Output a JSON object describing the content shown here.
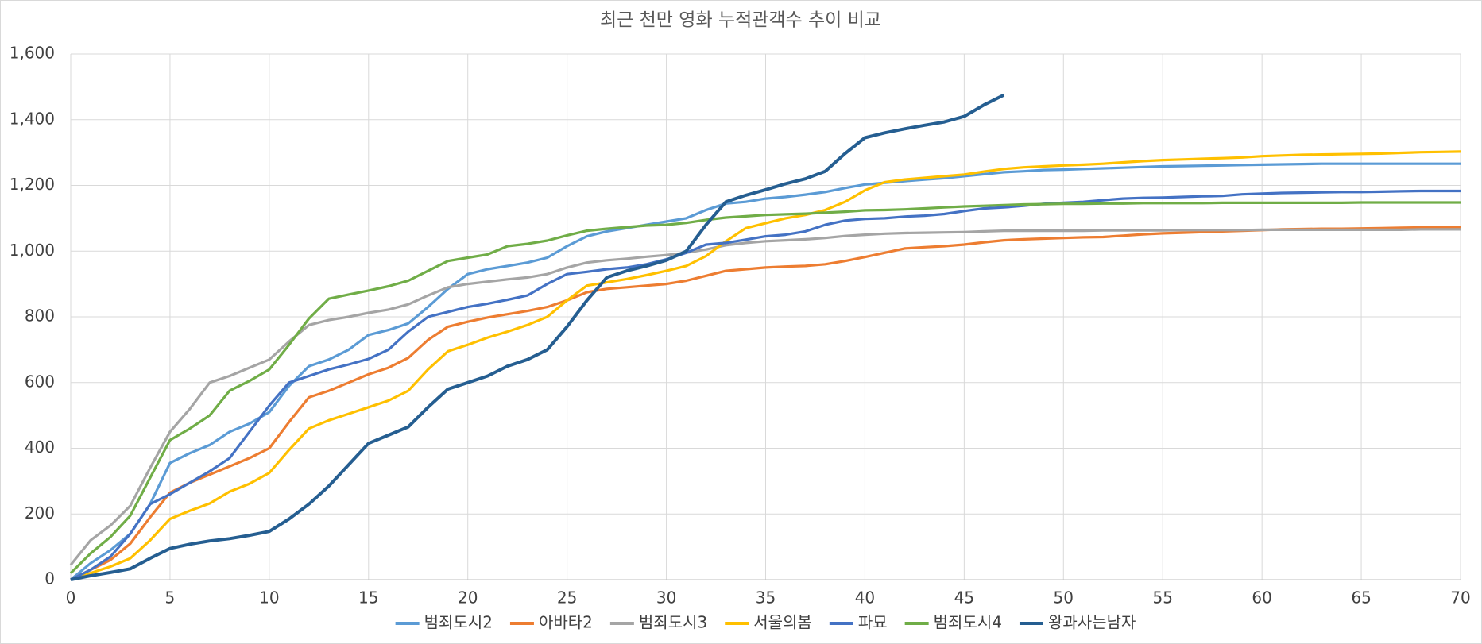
{
  "chart_data": {
    "type": "line",
    "title": "최근 천만 영화 누적관객수 추이 비교",
    "x": [
      0,
      1,
      2,
      3,
      4,
      5,
      6,
      7,
      8,
      9,
      10,
      11,
      12,
      13,
      14,
      15,
      16,
      17,
      18,
      19,
      20,
      21,
      22,
      23,
      24,
      25,
      26,
      27,
      28,
      29,
      30,
      31,
      32,
      33,
      34,
      35,
      36,
      37,
      38,
      39,
      40,
      41,
      42,
      43,
      44,
      45,
      46,
      47,
      48,
      49,
      50,
      51,
      52,
      53,
      54,
      55,
      56,
      57,
      58,
      59,
      60,
      61,
      62,
      63,
      64,
      65,
      66,
      67,
      68,
      69,
      70
    ],
    "series": [
      {
        "name": "범죄도시2",
        "color": "#5b9bd5",
        "values": [
          0,
          50,
          90,
          140,
          230,
          355,
          385,
          410,
          450,
          475,
          510,
          590,
          650,
          670,
          700,
          745,
          760,
          780,
          830,
          885,
          930,
          945,
          955,
          965,
          980,
          1015,
          1045,
          1060,
          1070,
          1080,
          1090,
          1100,
          1125,
          1145,
          1150,
          1160,
          1165,
          1172,
          1180,
          1192,
          1203,
          1208,
          1213,
          1218,
          1222,
          1228,
          1234,
          1240,
          1243,
          1247,
          1248,
          1250,
          1252,
          1254,
          1256,
          1258,
          1259,
          1260,
          1261,
          1262,
          1263,
          1264,
          1265,
          1266,
          1266,
          1266,
          1266,
          1266,
          1266,
          1266,
          1266
        ]
      },
      {
        "name": "아바타2",
        "color": "#ed7d31",
        "values": [
          0,
          30,
          60,
          110,
          190,
          265,
          295,
          320,
          345,
          370,
          400,
          480,
          555,
          575,
          600,
          625,
          645,
          675,
          730,
          770,
          785,
          798,
          808,
          818,
          830,
          850,
          875,
          885,
          890,
          895,
          900,
          910,
          925,
          940,
          945,
          950,
          953,
          955,
          960,
          970,
          982,
          995,
          1008,
          1012,
          1015,
          1020,
          1027,
          1033,
          1036,
          1038,
          1040,
          1042,
          1043,
          1047,
          1051,
          1054,
          1056,
          1058,
          1060,
          1062,
          1064,
          1066,
          1067,
          1068,
          1068,
          1069,
          1070,
          1071,
          1072,
          1072,
          1072
        ]
      },
      {
        "name": "범죄도시3",
        "color": "#a5a5a5",
        "values": [
          45,
          120,
          165,
          225,
          340,
          450,
          520,
          600,
          620,
          645,
          670,
          725,
          775,
          790,
          800,
          812,
          822,
          838,
          865,
          890,
          900,
          907,
          914,
          920,
          930,
          950,
          965,
          972,
          977,
          983,
          988,
          995,
          1005,
          1018,
          1025,
          1030,
          1033,
          1036,
          1040,
          1046,
          1050,
          1053,
          1055,
          1056,
          1057,
          1058,
          1060,
          1062,
          1062,
          1062,
          1062,
          1062,
          1063,
          1063,
          1063,
          1063,
          1064,
          1064,
          1064,
          1064,
          1065,
          1065,
          1065,
          1065,
          1065,
          1065,
          1065,
          1065,
          1066,
          1066,
          1066
        ]
      },
      {
        "name": "서울의봄",
        "color": "#ffc000",
        "values": [
          0,
          20,
          40,
          65,
          120,
          185,
          210,
          232,
          268,
          292,
          325,
          395,
          460,
          485,
          505,
          525,
          545,
          575,
          640,
          695,
          715,
          737,
          755,
          775,
          800,
          850,
          895,
          905,
          915,
          927,
          940,
          955,
          985,
          1030,
          1070,
          1085,
          1100,
          1110,
          1125,
          1150,
          1185,
          1210,
          1218,
          1223,
          1228,
          1233,
          1242,
          1250,
          1255,
          1258,
          1261,
          1263,
          1266,
          1270,
          1274,
          1277,
          1279,
          1281,
          1283,
          1285,
          1289,
          1291,
          1293,
          1294,
          1295,
          1296,
          1297,
          1299,
          1301,
          1302,
          1303
        ]
      },
      {
        "name": "파묘",
        "color": "#4472c4",
        "values": [
          0,
          30,
          70,
          140,
          230,
          260,
          295,
          330,
          370,
          450,
          530,
          600,
          620,
          640,
          655,
          672,
          700,
          755,
          800,
          815,
          830,
          840,
          852,
          865,
          900,
          930,
          937,
          945,
          950,
          960,
          975,
          995,
          1020,
          1025,
          1035,
          1045,
          1050,
          1060,
          1080,
          1093,
          1098,
          1100,
          1105,
          1108,
          1113,
          1122,
          1130,
          1133,
          1138,
          1144,
          1147,
          1150,
          1155,
          1160,
          1162,
          1163,
          1165,
          1167,
          1168,
          1173,
          1175,
          1177,
          1178,
          1179,
          1180,
          1180,
          1181,
          1182,
          1183,
          1183,
          1183
        ]
      },
      {
        "name": "범죄도시4",
        "color": "#70ad47",
        "values": [
          20,
          80,
          130,
          195,
          310,
          425,
          460,
          500,
          575,
          605,
          640,
          715,
          795,
          855,
          868,
          880,
          893,
          910,
          940,
          970,
          980,
          990,
          1015,
          1022,
          1032,
          1048,
          1062,
          1068,
          1073,
          1078,
          1080,
          1086,
          1095,
          1102,
          1106,
          1110,
          1112,
          1114,
          1117,
          1120,
          1124,
          1125,
          1127,
          1130,
          1133,
          1136,
          1138,
          1140,
          1142,
          1143,
          1144,
          1144,
          1145,
          1145,
          1146,
          1146,
          1146,
          1146,
          1147,
          1147,
          1147,
          1147,
          1147,
          1147,
          1147,
          1148,
          1148,
          1148,
          1148,
          1148,
          1148
        ]
      },
      {
        "name": "왕과사는남자",
        "color": "#255e91",
        "values": [
          0,
          12,
          22,
          33,
          65,
          95,
          108,
          118,
          125,
          135,
          147,
          185,
          230,
          285,
          350,
          415,
          440,
          465,
          525,
          580,
          600,
          620,
          650,
          670,
          700,
          770,
          850,
          920,
          940,
          955,
          972,
          1000,
          1080,
          1150,
          1170,
          1187,
          1205,
          1220,
          1243,
          1297,
          1345,
          1360,
          1372,
          1383,
          1393,
          1410,
          1445,
          1475,
          null,
          null,
          null,
          null,
          null,
          null,
          null,
          null,
          null,
          null,
          null,
          null,
          null,
          null,
          null,
          null,
          null,
          null,
          null,
          null,
          null,
          null,
          null
        ]
      }
    ],
    "xlim": [
      0,
      70
    ],
    "xticks": [
      0,
      5,
      10,
      15,
      20,
      25,
      30,
      35,
      40,
      45,
      50,
      55,
      60,
      65,
      70
    ],
    "ylim": [
      0,
      1600
    ],
    "yticks": [
      0,
      200,
      400,
      600,
      800,
      {
        "value": 1000,
        "label": "1,000"
      },
      {
        "value": 1200,
        "label": "1,200"
      },
      {
        "value": 1400,
        "label": "1,400"
      },
      {
        "value": 1600,
        "label": "1,600"
      }
    ],
    "grid": true,
    "legend": "bottom"
  }
}
